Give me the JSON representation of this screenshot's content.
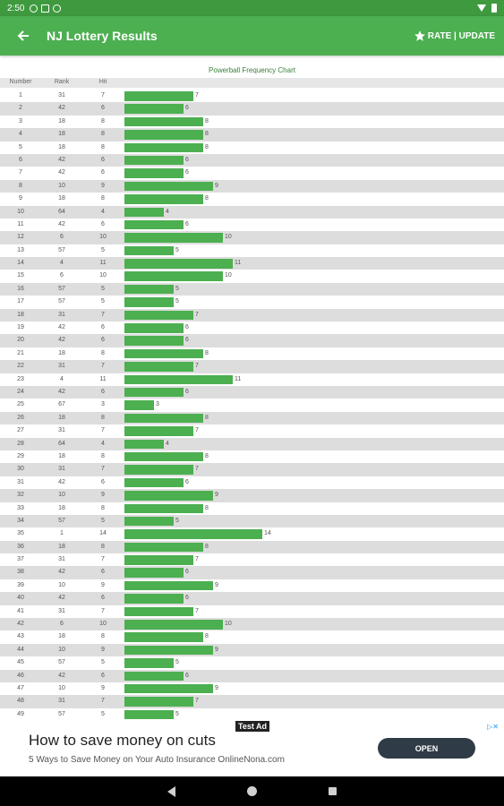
{
  "status_bar": {
    "time": "2:50"
  },
  "app_bar": {
    "title": "NJ Lottery Results",
    "action_label": "RATE | UPDATE"
  },
  "chart": {
    "title": "Powerball Frequency Chart",
    "headers": {
      "number": "Number",
      "rank": "Rank",
      "hit": "Hit"
    }
  },
  "chart_data": {
    "type": "bar",
    "title": "Powerball Frequency Chart",
    "columns": [
      "Number",
      "Rank",
      "Hit"
    ],
    "rows": [
      {
        "number": 1,
        "rank": 31,
        "hit": 7
      },
      {
        "number": 2,
        "rank": 42,
        "hit": 6
      },
      {
        "number": 3,
        "rank": 18,
        "hit": 8
      },
      {
        "number": 4,
        "rank": 18,
        "hit": 8
      },
      {
        "number": 5,
        "rank": 18,
        "hit": 8
      },
      {
        "number": 6,
        "rank": 42,
        "hit": 6
      },
      {
        "number": 7,
        "rank": 42,
        "hit": 6
      },
      {
        "number": 8,
        "rank": 10,
        "hit": 9
      },
      {
        "number": 9,
        "rank": 18,
        "hit": 8
      },
      {
        "number": 10,
        "rank": 64,
        "hit": 4
      },
      {
        "number": 11,
        "rank": 42,
        "hit": 6
      },
      {
        "number": 12,
        "rank": 6,
        "hit": 10
      },
      {
        "number": 13,
        "rank": 57,
        "hit": 5
      },
      {
        "number": 14,
        "rank": 4,
        "hit": 11
      },
      {
        "number": 15,
        "rank": 6,
        "hit": 10
      },
      {
        "number": 16,
        "rank": 57,
        "hit": 5
      },
      {
        "number": 17,
        "rank": 57,
        "hit": 5
      },
      {
        "number": 18,
        "rank": 31,
        "hit": 7
      },
      {
        "number": 19,
        "rank": 42,
        "hit": 6
      },
      {
        "number": 20,
        "rank": 42,
        "hit": 6
      },
      {
        "number": 21,
        "rank": 18,
        "hit": 8
      },
      {
        "number": 22,
        "rank": 31,
        "hit": 7
      },
      {
        "number": 23,
        "rank": 4,
        "hit": 11
      },
      {
        "number": 24,
        "rank": 42,
        "hit": 6
      },
      {
        "number": 25,
        "rank": 67,
        "hit": 3
      },
      {
        "number": 26,
        "rank": 18,
        "hit": 8
      },
      {
        "number": 27,
        "rank": 31,
        "hit": 7
      },
      {
        "number": 28,
        "rank": 64,
        "hit": 4
      },
      {
        "number": 29,
        "rank": 18,
        "hit": 8
      },
      {
        "number": 30,
        "rank": 31,
        "hit": 7
      },
      {
        "number": 31,
        "rank": 42,
        "hit": 6
      },
      {
        "number": 32,
        "rank": 10,
        "hit": 9
      },
      {
        "number": 33,
        "rank": 18,
        "hit": 8
      },
      {
        "number": 34,
        "rank": 57,
        "hit": 5
      },
      {
        "number": 35,
        "rank": 1,
        "hit": 14
      },
      {
        "number": 36,
        "rank": 18,
        "hit": 8
      },
      {
        "number": 37,
        "rank": 31,
        "hit": 7
      },
      {
        "number": 38,
        "rank": 42,
        "hit": 6
      },
      {
        "number": 39,
        "rank": 10,
        "hit": 9
      },
      {
        "number": 40,
        "rank": 42,
        "hit": 6
      },
      {
        "number": 41,
        "rank": 31,
        "hit": 7
      },
      {
        "number": 42,
        "rank": 6,
        "hit": 10
      },
      {
        "number": 43,
        "rank": 18,
        "hit": 8
      },
      {
        "number": 44,
        "rank": 10,
        "hit": 9
      },
      {
        "number": 45,
        "rank": 57,
        "hit": 5
      },
      {
        "number": 46,
        "rank": 42,
        "hit": 6
      },
      {
        "number": 47,
        "rank": 10,
        "hit": 9
      },
      {
        "number": 48,
        "rank": 31,
        "hit": 7
      },
      {
        "number": 49,
        "rank": 57,
        "hit": 5
      }
    ],
    "bar_color": "#4caf50"
  },
  "ad": {
    "tag": "Test Ad",
    "headline": "How to save money on cuts",
    "subtext": "5 Ways to Save Money on Your Auto Insurance OnlineNona.com",
    "cta": "OPEN"
  },
  "colors": {
    "primary": "#4caf50",
    "status_bar": "#3f9a3f",
    "ad_button": "#2f3b46"
  }
}
